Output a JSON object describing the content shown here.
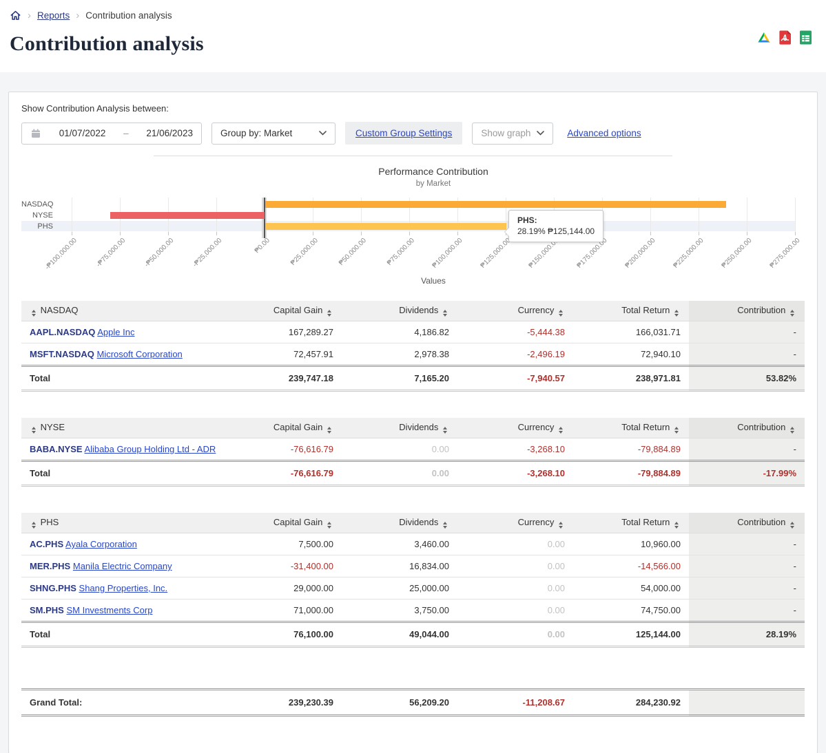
{
  "breadcrumb": {
    "reports": "Reports",
    "current": "Contribution analysis"
  },
  "page_title": "Contribution analysis",
  "export_icons": {
    "drive": "google-drive",
    "pdf": "pdf",
    "sheets": "google-sheets"
  },
  "filters": {
    "label": "Show Contribution Analysis between:",
    "date_start": "01/07/2022",
    "date_separator": "–",
    "date_end": "21/06/2023",
    "group_by": "Group by: Market",
    "custom_group_settings": "Custom Group Settings",
    "show_graph": "Show graph",
    "advanced_options": "Advanced options"
  },
  "chart_data": {
    "type": "bar",
    "orientation": "horizontal",
    "title": "Performance Contribution",
    "subtitle": "by Market",
    "categories": [
      "NASDAQ",
      "NYSE",
      "PHS"
    ],
    "values": [
      238971.81,
      -79884.89,
      125144.0
    ],
    "bar_colors": [
      "#fbab35",
      "#eb6164",
      "#fdc44f"
    ],
    "xlabel": "Values",
    "xlim": [
      -100000,
      275000
    ],
    "x_tick_values": [
      -100000,
      -75000,
      -50000,
      -25000,
      0,
      25000,
      50000,
      75000,
      100000,
      125000,
      150000,
      175000,
      200000,
      225000,
      250000,
      275000
    ],
    "x_tick_labels": [
      "-₱100,000.00",
      "-₱75,000.00",
      "-₱50,000.00",
      "-₱25,000.00",
      "₱0.00",
      "₱25,000.00",
      "₱50,000.00",
      "₱75,000.00",
      "₱100,000.00",
      "₱125,000.00",
      "₱150,000.00",
      "₱175,000.00",
      "₱200,000.00",
      "₱225,000.00",
      "₱250,000.00",
      "₱275,000.00"
    ],
    "grid": true,
    "highlighted_category": "PHS",
    "tooltip": {
      "title": "PHS:",
      "value": "28.19% ₱125,144.00"
    }
  },
  "tables": [
    {
      "group": "NASDAQ",
      "columns": [
        "Capital Gain",
        "Dividends",
        "Currency",
        "Total Return",
        "Contribution"
      ],
      "rows": [
        {
          "code": "AAPL.NASDAQ",
          "name": "Apple Inc",
          "cells": [
            {
              "v": "167,289.27"
            },
            {
              "v": "4,186.82"
            },
            {
              "v": "-5,444.38",
              "c": "neg"
            },
            {
              "v": "166,031.71"
            },
            {
              "v": "-"
            }
          ]
        },
        {
          "code": "MSFT.NASDAQ",
          "name": "Microsoft Corporation",
          "cells": [
            {
              "v": "72,457.91"
            },
            {
              "v": "2,978.38"
            },
            {
              "v": "-2,496.19",
              "c": "neg"
            },
            {
              "v": "72,940.10"
            },
            {
              "v": "-"
            }
          ]
        }
      ],
      "total": {
        "label": "Total",
        "cells": [
          {
            "v": "239,747.18"
          },
          {
            "v": "7,165.20"
          },
          {
            "v": "-7,940.57",
            "c": "neg"
          },
          {
            "v": "238,971.81"
          },
          {
            "v": "53.82%"
          }
        ]
      }
    },
    {
      "group": "NYSE",
      "columns": [
        "Capital Gain",
        "Dividends",
        "Currency",
        "Total Return",
        "Contribution"
      ],
      "rows": [
        {
          "code": "BABA.NYSE",
          "name": "Alibaba Group Holding Ltd - ADR",
          "cells": [
            {
              "v": "-76,616.79",
              "c": "neg"
            },
            {
              "v": "0.00",
              "c": "zero"
            },
            {
              "v": "-3,268.10",
              "c": "neg"
            },
            {
              "v": "-79,884.89",
              "c": "neg"
            },
            {
              "v": "-"
            }
          ]
        }
      ],
      "total": {
        "label": "Total",
        "cells": [
          {
            "v": "-76,616.79",
            "c": "neg"
          },
          {
            "v": "0.00",
            "c": "zero"
          },
          {
            "v": "-3,268.10",
            "c": "neg"
          },
          {
            "v": "-79,884.89",
            "c": "neg"
          },
          {
            "v": "-17.99%",
            "c": "neg"
          }
        ]
      }
    },
    {
      "group": "PHS",
      "columns": [
        "Capital Gain",
        "Dividends",
        "Currency",
        "Total Return",
        "Contribution"
      ],
      "rows": [
        {
          "code": "AC.PHS",
          "name": "Ayala Corporation",
          "cells": [
            {
              "v": "7,500.00"
            },
            {
              "v": "3,460.00"
            },
            {
              "v": "0.00",
              "c": "zero"
            },
            {
              "v": "10,960.00"
            },
            {
              "v": "-"
            }
          ]
        },
        {
          "code": "MER.PHS",
          "name": "Manila Electric Company",
          "cells": [
            {
              "v": "-31,400.00",
              "c": "neg"
            },
            {
              "v": "16,834.00"
            },
            {
              "v": "0.00",
              "c": "zero"
            },
            {
              "v": "-14,566.00",
              "c": "neg"
            },
            {
              "v": "-"
            }
          ]
        },
        {
          "code": "SHNG.PHS",
          "name": "Shang Properties, Inc.",
          "cells": [
            {
              "v": "29,000.00"
            },
            {
              "v": "25,000.00"
            },
            {
              "v": "0.00",
              "c": "zero"
            },
            {
              "v": "54,000.00"
            },
            {
              "v": "-"
            }
          ]
        },
        {
          "code": "SM.PHS",
          "name": "SM Investments Corp",
          "cells": [
            {
              "v": "71,000.00"
            },
            {
              "v": "3,750.00"
            },
            {
              "v": "0.00",
              "c": "zero"
            },
            {
              "v": "74,750.00"
            },
            {
              "v": "-"
            }
          ]
        }
      ],
      "total": {
        "label": "Total",
        "cells": [
          {
            "v": "76,100.00"
          },
          {
            "v": "49,044.00"
          },
          {
            "v": "0.00",
            "c": "zero"
          },
          {
            "v": "125,144.00"
          },
          {
            "v": "28.19%"
          }
        ]
      }
    }
  ],
  "grand_total": {
    "label": "Grand Total:",
    "cells": [
      {
        "v": "239,230.39"
      },
      {
        "v": "56,209.20"
      },
      {
        "v": "-11,208.67",
        "c": "neg"
      },
      {
        "v": "284,230.92"
      },
      {
        "v": ""
      }
    ]
  },
  "colors": {
    "link": "#2946c8",
    "ticker_navy": "#2c3a85",
    "negative": "#b0302c",
    "bar_nasdaq": "#fbab35",
    "bar_nyse": "#eb6164",
    "bar_phs": "#fdc44f"
  }
}
